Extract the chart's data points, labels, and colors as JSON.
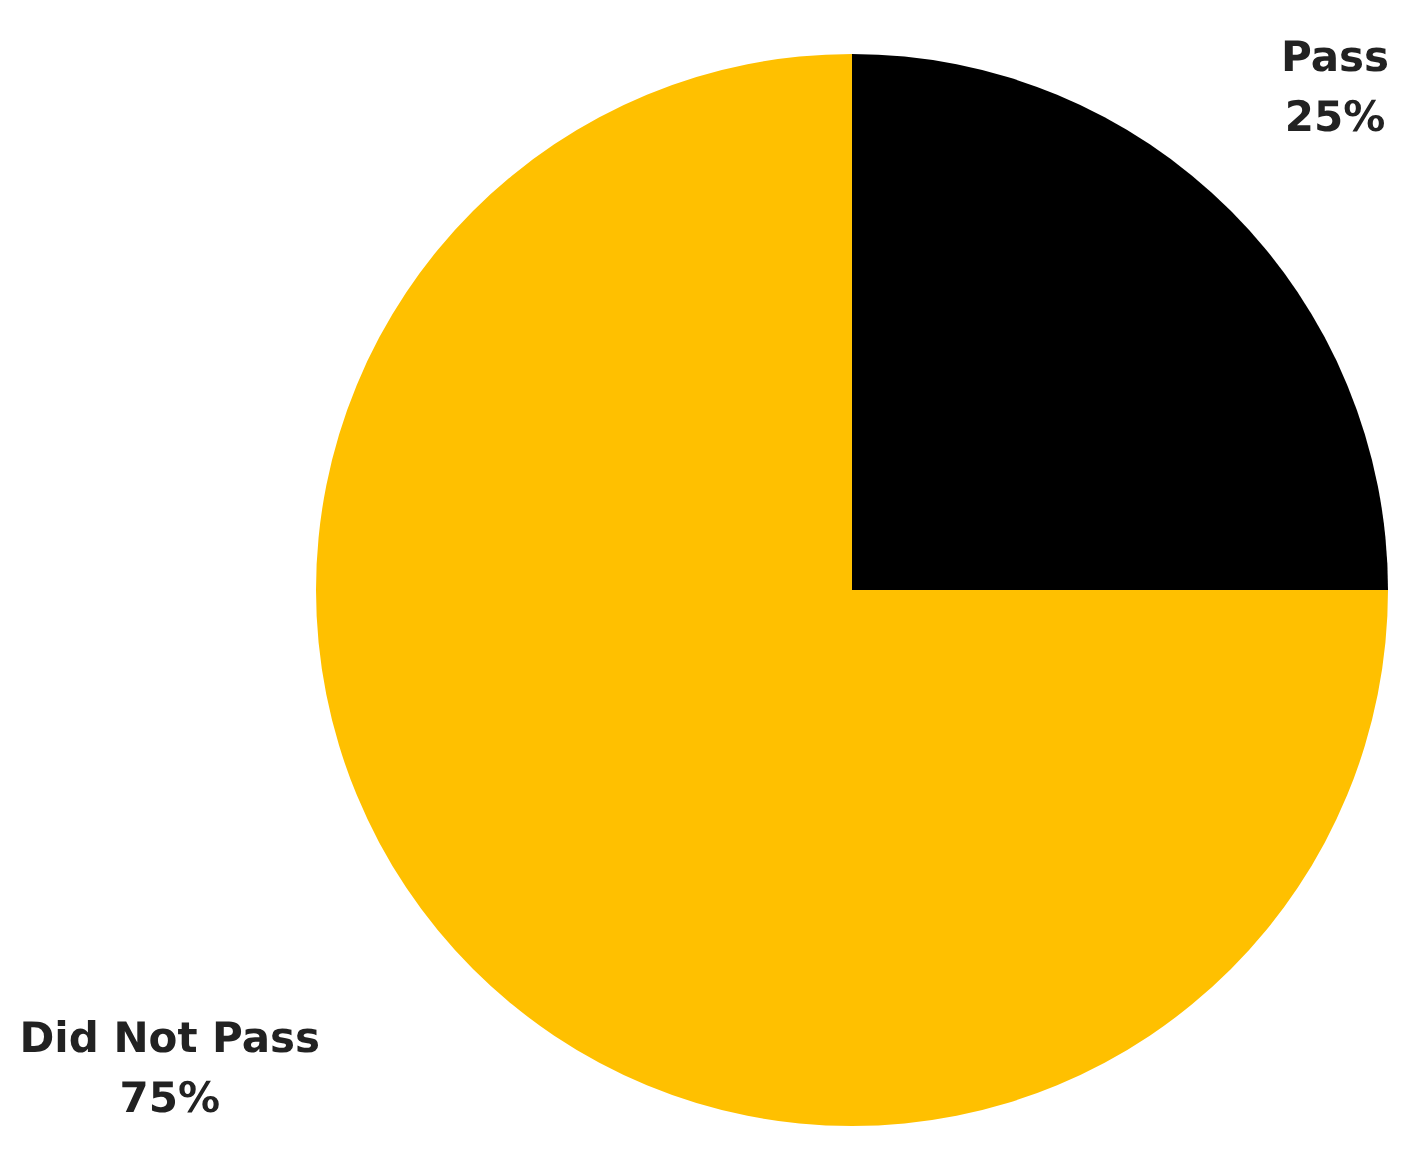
{
  "chart_data": {
    "type": "pie",
    "categories": [
      "Pass",
      "Did Not Pass"
    ],
    "values": [
      25,
      75
    ],
    "colors": [
      "#000000",
      "#ffc000"
    ],
    "value_labels": [
      "25%",
      "75%"
    ]
  }
}
